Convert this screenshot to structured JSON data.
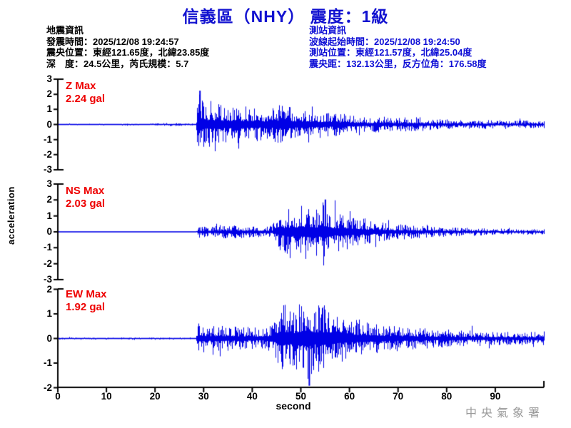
{
  "title": {
    "text": "信義區（NHY） 震度：1級"
  },
  "earthquake_info": {
    "heading": "地震資訊",
    "lines": [
      "發震時間：2025/12/08 19:24:57",
      "震央位置：東經121.65度，北緯23.85度",
      "深　度：24.5公里，芮氏規模：5.7"
    ]
  },
  "station_info": {
    "heading": "測站資訊",
    "lines": [
      "波線起始時間：2025/12/08 19:24:50",
      "測站位置：東經121.57度，北緯25.04度",
      "震央距：132.13公里，反方位角：176.58度"
    ]
  },
  "watermark": "中央氣象署",
  "colors": {
    "title_blue": "#1212d0",
    "info_blue": "#0f0fd6",
    "trace_blue": "#0000e6",
    "label_red": "#ee0000",
    "axis_black": "#000000",
    "watermark_gray": "#9a9a9a"
  },
  "chart_data": {
    "type": "line",
    "subtype": "seismogram-3-component",
    "xlabel": "second",
    "ylabel": "acceleration",
    "xlim": [
      0,
      100
    ],
    "x_ticks": [
      0,
      10,
      20,
      30,
      40,
      50,
      60,
      70,
      80,
      90
    ],
    "grid": false,
    "trace_color": "#0000e6",
    "p_arrival_s": 28.8,
    "traces": [
      {
        "id": "Z",
        "label": "Z Max",
        "max_label": "2.24 gal",
        "max_value": 2.24,
        "ylim": [
          -3,
          3
        ],
        "yticks": [
          -3,
          -2,
          -1,
          0,
          1,
          2,
          3
        ],
        "peak": {
          "t": 29.1,
          "v": 2.24,
          "sign": 1
        },
        "envelope": [
          [
            0,
            0.05
          ],
          [
            12,
            0.05
          ],
          [
            14,
            0.08
          ],
          [
            17,
            0.05
          ],
          [
            21,
            0.09
          ],
          [
            24,
            0.12
          ],
          [
            26,
            0.07
          ],
          [
            28.4,
            0.06
          ],
          [
            28.8,
            2.05
          ],
          [
            29.6,
            1.85
          ],
          [
            30.5,
            1.5
          ],
          [
            32,
            1.55
          ],
          [
            34,
            1.3
          ],
          [
            37,
            1.25
          ],
          [
            40,
            1.12
          ],
          [
            43,
            1.02
          ],
          [
            46,
            1.5
          ],
          [
            47,
            1.75
          ],
          [
            48,
            1.1
          ],
          [
            50,
            1.05
          ],
          [
            53,
            0.9
          ],
          [
            56,
            0.8
          ],
          [
            58,
            0.72
          ],
          [
            60,
            0.65
          ],
          [
            64,
            0.5
          ],
          [
            67,
            0.52
          ],
          [
            70,
            0.45
          ],
          [
            74,
            0.48
          ],
          [
            78,
            0.35
          ],
          [
            83,
            0.3
          ],
          [
            88,
            0.28
          ],
          [
            94,
            0.26
          ],
          [
            100,
            0.24
          ]
        ]
      },
      {
        "id": "NS",
        "label": "NS Max",
        "max_label": "2.03 gal",
        "max_value": 2.03,
        "ylim": [
          -3,
          3
        ],
        "yticks": [
          -3,
          -2,
          -1,
          0,
          1,
          2,
          3
        ],
        "peak": {
          "t": 54.9,
          "v": 2.03,
          "sign": 1
        },
        "envelope": [
          [
            0,
            0.03
          ],
          [
            28.4,
            0.03
          ],
          [
            28.8,
            0.4
          ],
          [
            29.5,
            0.32
          ],
          [
            32,
            0.38
          ],
          [
            35,
            0.42
          ],
          [
            38,
            0.4
          ],
          [
            41,
            0.34
          ],
          [
            44,
            0.38
          ],
          [
            45.5,
            1.1
          ],
          [
            47,
            1.45
          ],
          [
            48.5,
            1.35
          ],
          [
            50,
            1.65
          ],
          [
            51.5,
            1.75
          ],
          [
            53,
            1.45
          ],
          [
            54.8,
            1.95
          ],
          [
            55.5,
            1.5
          ],
          [
            57,
            1.2
          ],
          [
            58.5,
            1.3
          ],
          [
            60,
            1.1
          ],
          [
            62,
            0.95
          ],
          [
            64,
            0.75
          ],
          [
            66,
            0.62
          ],
          [
            69,
            0.52
          ],
          [
            72,
            0.44
          ],
          [
            76,
            0.35
          ],
          [
            81,
            0.28
          ],
          [
            87,
            0.22
          ],
          [
            93,
            0.19
          ],
          [
            100,
            0.16
          ]
        ]
      },
      {
        "id": "EW",
        "label": "EW Max",
        "max_label": "1.92 gal",
        "max_value": 1.92,
        "ylim": [
          -2,
          2
        ],
        "yticks": [
          -2,
          -1,
          0,
          1,
          2
        ],
        "peak": {
          "t": 51.6,
          "v": 1.92,
          "sign": -1
        },
        "envelope": [
          [
            0,
            0.04
          ],
          [
            28.4,
            0.04
          ],
          [
            28.8,
            0.7
          ],
          [
            29.5,
            0.55
          ],
          [
            31,
            0.5
          ],
          [
            34,
            0.52
          ],
          [
            37,
            0.48
          ],
          [
            40,
            0.44
          ],
          [
            43,
            0.42
          ],
          [
            44.5,
            0.8
          ],
          [
            45.5,
            1.25
          ],
          [
            47,
            1.4
          ],
          [
            48.5,
            1.15
          ],
          [
            50,
            1.5
          ],
          [
            51.5,
            1.85
          ],
          [
            52.5,
            1.3
          ],
          [
            54,
            1.35
          ],
          [
            55.5,
            1.45
          ],
          [
            57,
            1.05
          ],
          [
            59,
            0.92
          ],
          [
            61,
            0.82
          ],
          [
            63,
            0.7
          ],
          [
            65,
            0.62
          ],
          [
            68,
            0.54
          ],
          [
            71,
            0.48
          ],
          [
            75,
            0.42
          ],
          [
            79,
            0.37
          ],
          [
            84,
            0.32
          ],
          [
            90,
            0.29
          ],
          [
            100,
            0.26
          ]
        ]
      }
    ]
  }
}
